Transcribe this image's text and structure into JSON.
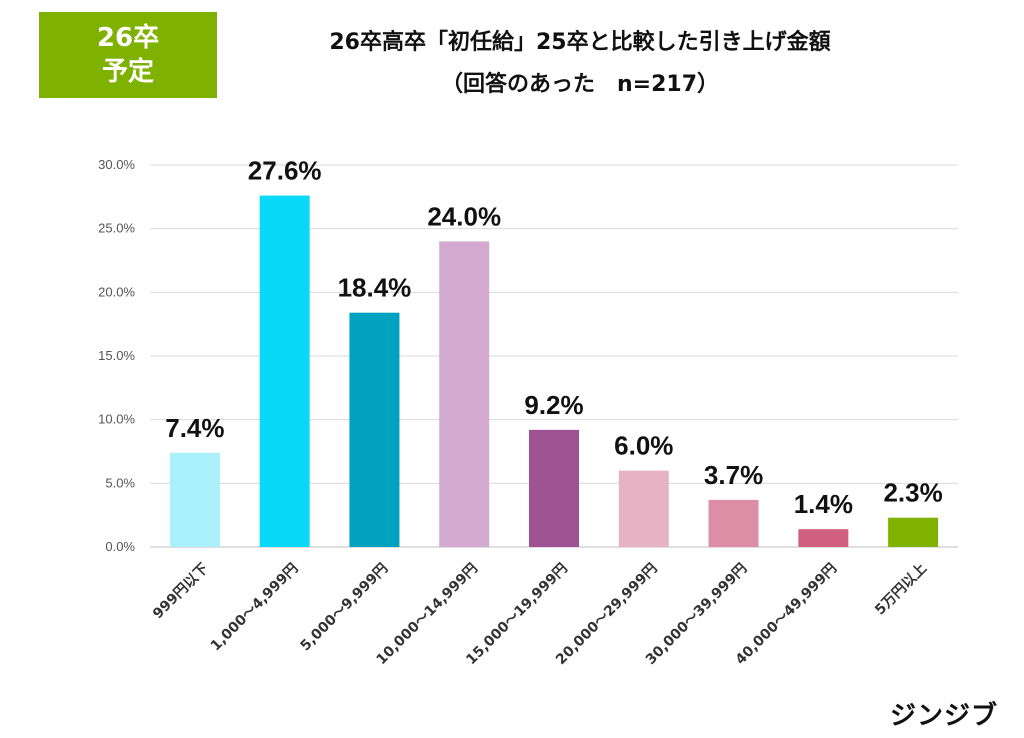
{
  "badge": {
    "line1": "26卒",
    "line2": "予定"
  },
  "title": {
    "line1": "26卒高卒「初任給」25卒と比較した引き上げ金額",
    "line2": "（回答のあった　n=217）"
  },
  "logo": "ジンジブ",
  "chart_data": {
    "type": "bar",
    "title": "26卒高卒「初任給」25卒と比較した引き上げ金額（回答のあった　n=217）",
    "xlabel": "",
    "ylabel": "",
    "ylim": [
      0,
      30
    ],
    "yticks": [
      "0.0%",
      "5.0%",
      "10.0%",
      "15.0%",
      "20.0%",
      "25.0%",
      "30.0%"
    ],
    "grid": true,
    "categories": [
      "999円以下",
      "1,000～4,999円",
      "5,000～9,999円",
      "10,000～14,999円",
      "15,000～19,999円",
      "20,000～29,999円",
      "30,000～39,999円",
      "40,000～49,999円",
      "5万円以上"
    ],
    "values": [
      7.4,
      27.6,
      18.4,
      24.0,
      9.2,
      6.0,
      3.7,
      1.4,
      2.3
    ],
    "value_labels": [
      "7.4%",
      "27.6%",
      "18.4%",
      "24.0%",
      "9.2%",
      "6.0%",
      "3.7%",
      "1.4%",
      "2.3%"
    ],
    "colors": [
      "#aaf0fb",
      "#08d9f9",
      "#00a2bf",
      "#d4a9cf",
      "#a05394",
      "#e6b2c4",
      "#dc8ea6",
      "#d0607e",
      "#7fb100"
    ]
  }
}
